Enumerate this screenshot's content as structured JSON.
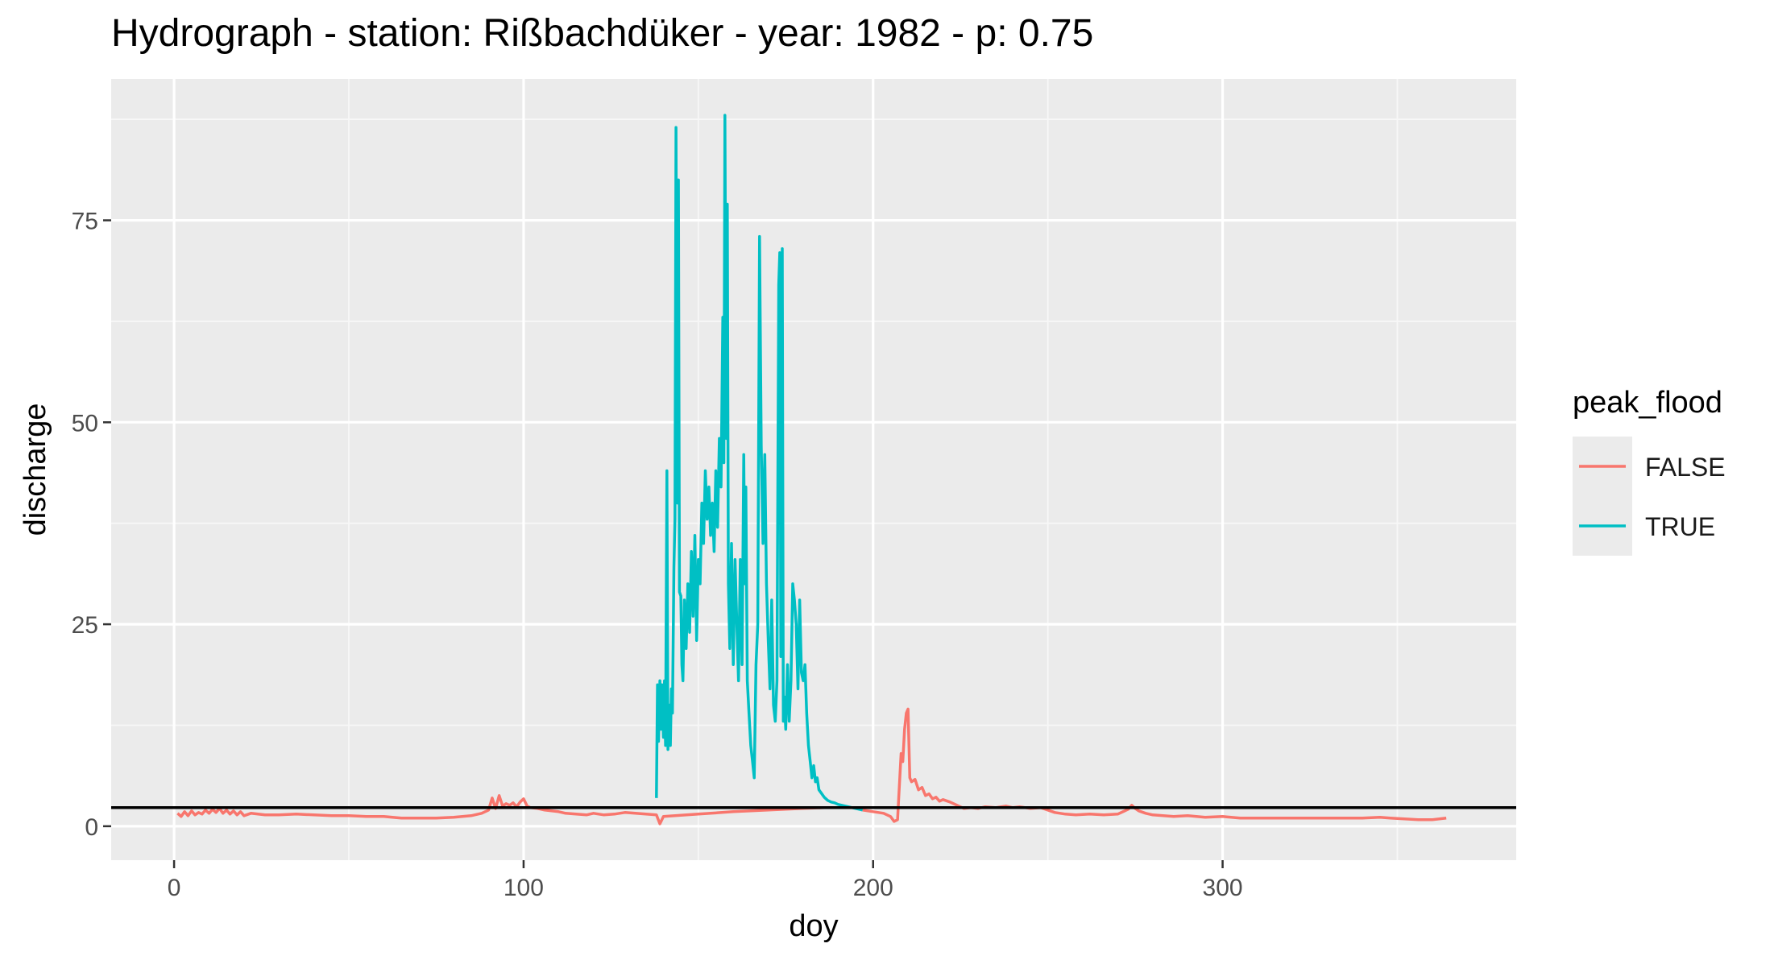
{
  "chart_data": {
    "type": "line",
    "title": "Hydrograph - station: Rißbachdüker - year: 1982 - p: 0.75",
    "xlabel": "doy",
    "ylabel": "discharge",
    "xlim": [
      -18,
      384
    ],
    "ylim": [
      -4.2,
      92.5
    ],
    "xticks": [
      0,
      100,
      200,
      300
    ],
    "yticks": [
      0,
      25,
      50,
      75
    ],
    "grid": true,
    "threshold": 2.3,
    "legend": {
      "title": "peak_flood",
      "placement": "right",
      "entries": [
        {
          "label": "FALSE",
          "color": "#F8766D"
        },
        {
          "label": "TRUE",
          "color": "#00BFC4"
        }
      ]
    },
    "series": [
      {
        "name": "FALSE",
        "color": "#F8766D",
        "segments": [
          [
            [
              1,
              1.6
            ],
            [
              2,
              1.2
            ],
            [
              3,
              1.8
            ],
            [
              4,
              1.3
            ],
            [
              5,
              1.9
            ],
            [
              6,
              1.4
            ],
            [
              7,
              1.7
            ],
            [
              8,
              1.5
            ],
            [
              9,
              2.0
            ],
            [
              10,
              1.6
            ],
            [
              11,
              2.1
            ],
            [
              12,
              1.7
            ],
            [
              13,
              2.2
            ],
            [
              14,
              1.6
            ],
            [
              15,
              2.0
            ],
            [
              16,
              1.5
            ],
            [
              17,
              1.9
            ],
            [
              18,
              1.4
            ],
            [
              19,
              1.8
            ],
            [
              20,
              1.3
            ],
            [
              22,
              1.6
            ],
            [
              24,
              1.5
            ],
            [
              26,
              1.4
            ],
            [
              30,
              1.4
            ],
            [
              35,
              1.5
            ],
            [
              40,
              1.4
            ],
            [
              45,
              1.3
            ],
            [
              50,
              1.3
            ],
            [
              55,
              1.2
            ],
            [
              60,
              1.2
            ],
            [
              65,
              1.0
            ],
            [
              70,
              1.0
            ],
            [
              75,
              1.0
            ],
            [
              80,
              1.1
            ],
            [
              85,
              1.3
            ],
            [
              88,
              1.6
            ],
            [
              90,
              2.0
            ],
            [
              91,
              3.5
            ],
            [
              92,
              2.2
            ],
            [
              93,
              3.8
            ],
            [
              94,
              2.5
            ],
            [
              95,
              2.8
            ],
            [
              96,
              2.6
            ],
            [
              97,
              2.9
            ],
            [
              98,
              2.4
            ],
            [
              99,
              3.0
            ],
            [
              100,
              3.4
            ],
            [
              101,
              2.5
            ],
            [
              102,
              2.3
            ],
            [
              104,
              2.2
            ],
            [
              106,
              2.0
            ],
            [
              108,
              1.9
            ],
            [
              110,
              1.8
            ],
            [
              112,
              1.6
            ],
            [
              115,
              1.5
            ],
            [
              118,
              1.4
            ],
            [
              120,
              1.6
            ],
            [
              123,
              1.4
            ],
            [
              126,
              1.5
            ],
            [
              129,
              1.7
            ],
            [
              132,
              1.6
            ],
            [
              135,
              1.5
            ],
            [
              138,
              1.4
            ],
            [
              139,
              0.3
            ],
            [
              140,
              1.2
            ],
            [
              150,
              1.5
            ],
            [
              160,
              1.8
            ],
            [
              170,
              2.0
            ],
            [
              180,
              2.2
            ],
            [
              186,
              2.3
            ]
          ],
          [
            [
              197,
              2.0
            ],
            [
              200,
              1.8
            ],
            [
              203,
              1.6
            ],
            [
              205,
              1.2
            ],
            [
              206,
              0.6
            ],
            [
              207,
              0.8
            ],
            [
              208,
              9.0
            ],
            [
              208.5,
              8.0
            ],
            [
              209,
              12.0
            ],
            [
              209.5,
              14.0
            ],
            [
              210,
              14.5
            ],
            [
              210.5,
              6.0
            ],
            [
              211,
              5.5
            ],
            [
              212,
              5.8
            ],
            [
              213,
              4.5
            ],
            [
              214,
              4.8
            ],
            [
              215,
              3.8
            ],
            [
              216,
              4.0
            ],
            [
              217,
              3.4
            ],
            [
              218,
              3.6
            ],
            [
              219,
              3.1
            ],
            [
              220,
              3.3
            ],
            [
              222,
              3.0
            ],
            [
              224,
              2.6
            ],
            [
              226,
              2.2
            ],
            [
              228,
              2.3
            ],
            [
              230,
              2.2
            ],
            [
              232,
              2.4
            ],
            [
              235,
              2.3
            ],
            [
              238,
              2.5
            ],
            [
              240,
              2.3
            ],
            [
              242,
              2.4
            ],
            [
              245,
              2.2
            ],
            [
              248,
              2.3
            ],
            [
              250,
              2.0
            ],
            [
              252,
              1.7
            ],
            [
              255,
              1.5
            ],
            [
              258,
              1.4
            ],
            [
              262,
              1.5
            ],
            [
              266,
              1.4
            ],
            [
              270,
              1.5
            ],
            [
              273,
              2.1
            ],
            [
              274,
              2.6
            ],
            [
              275,
              2.2
            ],
            [
              276,
              1.9
            ],
            [
              278,
              1.6
            ],
            [
              280,
              1.4
            ],
            [
              283,
              1.3
            ],
            [
              286,
              1.2
            ],
            [
              290,
              1.3
            ],
            [
              295,
              1.1
            ],
            [
              300,
              1.2
            ],
            [
              305,
              1.0
            ],
            [
              310,
              1.0
            ],
            [
              320,
              1.0
            ],
            [
              330,
              1.0
            ],
            [
              340,
              1.0
            ],
            [
              345,
              1.1
            ],
            [
              348,
              1.0
            ],
            [
              352,
              0.9
            ],
            [
              356,
              0.8
            ],
            [
              360,
              0.8
            ],
            [
              364,
              1.0
            ]
          ]
        ]
      },
      {
        "name": "TRUE",
        "color": "#00BFC4",
        "segments": [
          [
            [
              138,
              3.5
            ],
            [
              138.3,
              17.5
            ],
            [
              138.6,
              10.5
            ],
            [
              139,
              18.0
            ],
            [
              139.3,
              12.0
            ],
            [
              139.6,
              17.5
            ],
            [
              140,
              11.0
            ],
            [
              140.3,
              18.0
            ],
            [
              140.6,
              10.0
            ],
            [
              141,
              44.0
            ],
            [
              141.3,
              9.5
            ],
            [
              141.6,
              15.0
            ],
            [
              142,
              10.0
            ],
            [
              142.3,
              17.0
            ],
            [
              142.6,
              14.0
            ],
            [
              143,
              32.0
            ],
            [
              143.3,
              38.0
            ],
            [
              143.6,
              86.5
            ],
            [
              144,
              40.0
            ],
            [
              144.3,
              80.0
            ],
            [
              144.6,
              29.0
            ],
            [
              145,
              28.5
            ],
            [
              145.3,
              20.0
            ],
            [
              145.6,
              18.0
            ],
            [
              146,
              28.0
            ],
            [
              146.5,
              22.0
            ],
            [
              147,
              30.0
            ],
            [
              147.5,
              24.0
            ],
            [
              148,
              34.0
            ],
            [
              148.5,
              26.0
            ],
            [
              149,
              36.0
            ],
            [
              149.5,
              23.0
            ],
            [
              150,
              33.0
            ],
            [
              150.5,
              30.0
            ],
            [
              151,
              40.0
            ],
            [
              151.5,
              35.0
            ],
            [
              152,
              44.0
            ],
            [
              152.5,
              38.0
            ],
            [
              153,
              42.0
            ],
            [
              153.5,
              36.0
            ],
            [
              154,
              40.0
            ],
            [
              154.5,
              34.0
            ],
            [
              155,
              44.0
            ],
            [
              155.5,
              37.0
            ],
            [
              156,
              48.0
            ],
            [
              156.5,
              42.0
            ],
            [
              157,
              63.0
            ],
            [
              157.3,
              45.0
            ],
            [
              157.6,
              88.0
            ],
            [
              158,
              48.0
            ],
            [
              158.3,
              77.0
            ],
            [
              158.6,
              30.0
            ],
            [
              159,
              22.0
            ],
            [
              159.5,
              35.0
            ],
            [
              160,
              20.0
            ],
            [
              160.5,
              33.0
            ],
            [
              161,
              25.0
            ],
            [
              161.5,
              18.0
            ],
            [
              162,
              33.0
            ],
            [
              162.5,
              20.0
            ],
            [
              163,
              46.0
            ],
            [
              163.3,
              30.0
            ],
            [
              163.6,
              42.0
            ],
            [
              164,
              18.0
            ],
            [
              164.5,
              14.0
            ],
            [
              165,
              10.0
            ],
            [
              165.5,
              8.0
            ],
            [
              166,
              6.0
            ],
            [
              166.5,
              20.0
            ],
            [
              167,
              25.0
            ],
            [
              167.5,
              73.0
            ],
            [
              168,
              47.0
            ],
            [
              168.5,
              35.0
            ],
            [
              169,
              46.0
            ],
            [
              169.5,
              30.0
            ],
            [
              170,
              23.0
            ],
            [
              170.5,
              17.0
            ],
            [
              171,
              28.0
            ],
            [
              171.5,
              15.0
            ],
            [
              172,
              13.0
            ],
            [
              172.5,
              18.0
            ],
            [
              173,
              67.0
            ],
            [
              173.3,
              71.0
            ],
            [
              173.6,
              21.0
            ],
            [
              174,
              71.5
            ],
            [
              174.3,
              13.0
            ],
            [
              174.6,
              16.0
            ],
            [
              175,
              12.0
            ],
            [
              175.5,
              20.0
            ],
            [
              176,
              13.0
            ],
            [
              176.5,
              18.0
            ],
            [
              177,
              30.0
            ],
            [
              177.5,
              28.0
            ],
            [
              178,
              25.0
            ],
            [
              178.5,
              17.0
            ],
            [
              179,
              28.0
            ],
            [
              179.5,
              19.0
            ],
            [
              180,
              18.0
            ],
            [
              180.5,
              20.0
            ],
            [
              181,
              14.0
            ],
            [
              181.5,
              10.0
            ],
            [
              182,
              8.0
            ],
            [
              182.5,
              6.0
            ],
            [
              183,
              7.5
            ],
            [
              183.5,
              5.5
            ],
            [
              184,
              6.0
            ],
            [
              184.5,
              4.5
            ],
            [
              185,
              4.2
            ],
            [
              186,
              3.6
            ],
            [
              187,
              3.2
            ],
            [
              188,
              3.0
            ],
            [
              189,
              2.9
            ],
            [
              190,
              2.7
            ],
            [
              191,
              2.6
            ],
            [
              192,
              2.5
            ],
            [
              193,
              2.4
            ],
            [
              194,
              2.3
            ],
            [
              195,
              2.2
            ],
            [
              196,
              2.1
            ],
            [
              197,
              2.0
            ]
          ]
        ]
      }
    ]
  }
}
